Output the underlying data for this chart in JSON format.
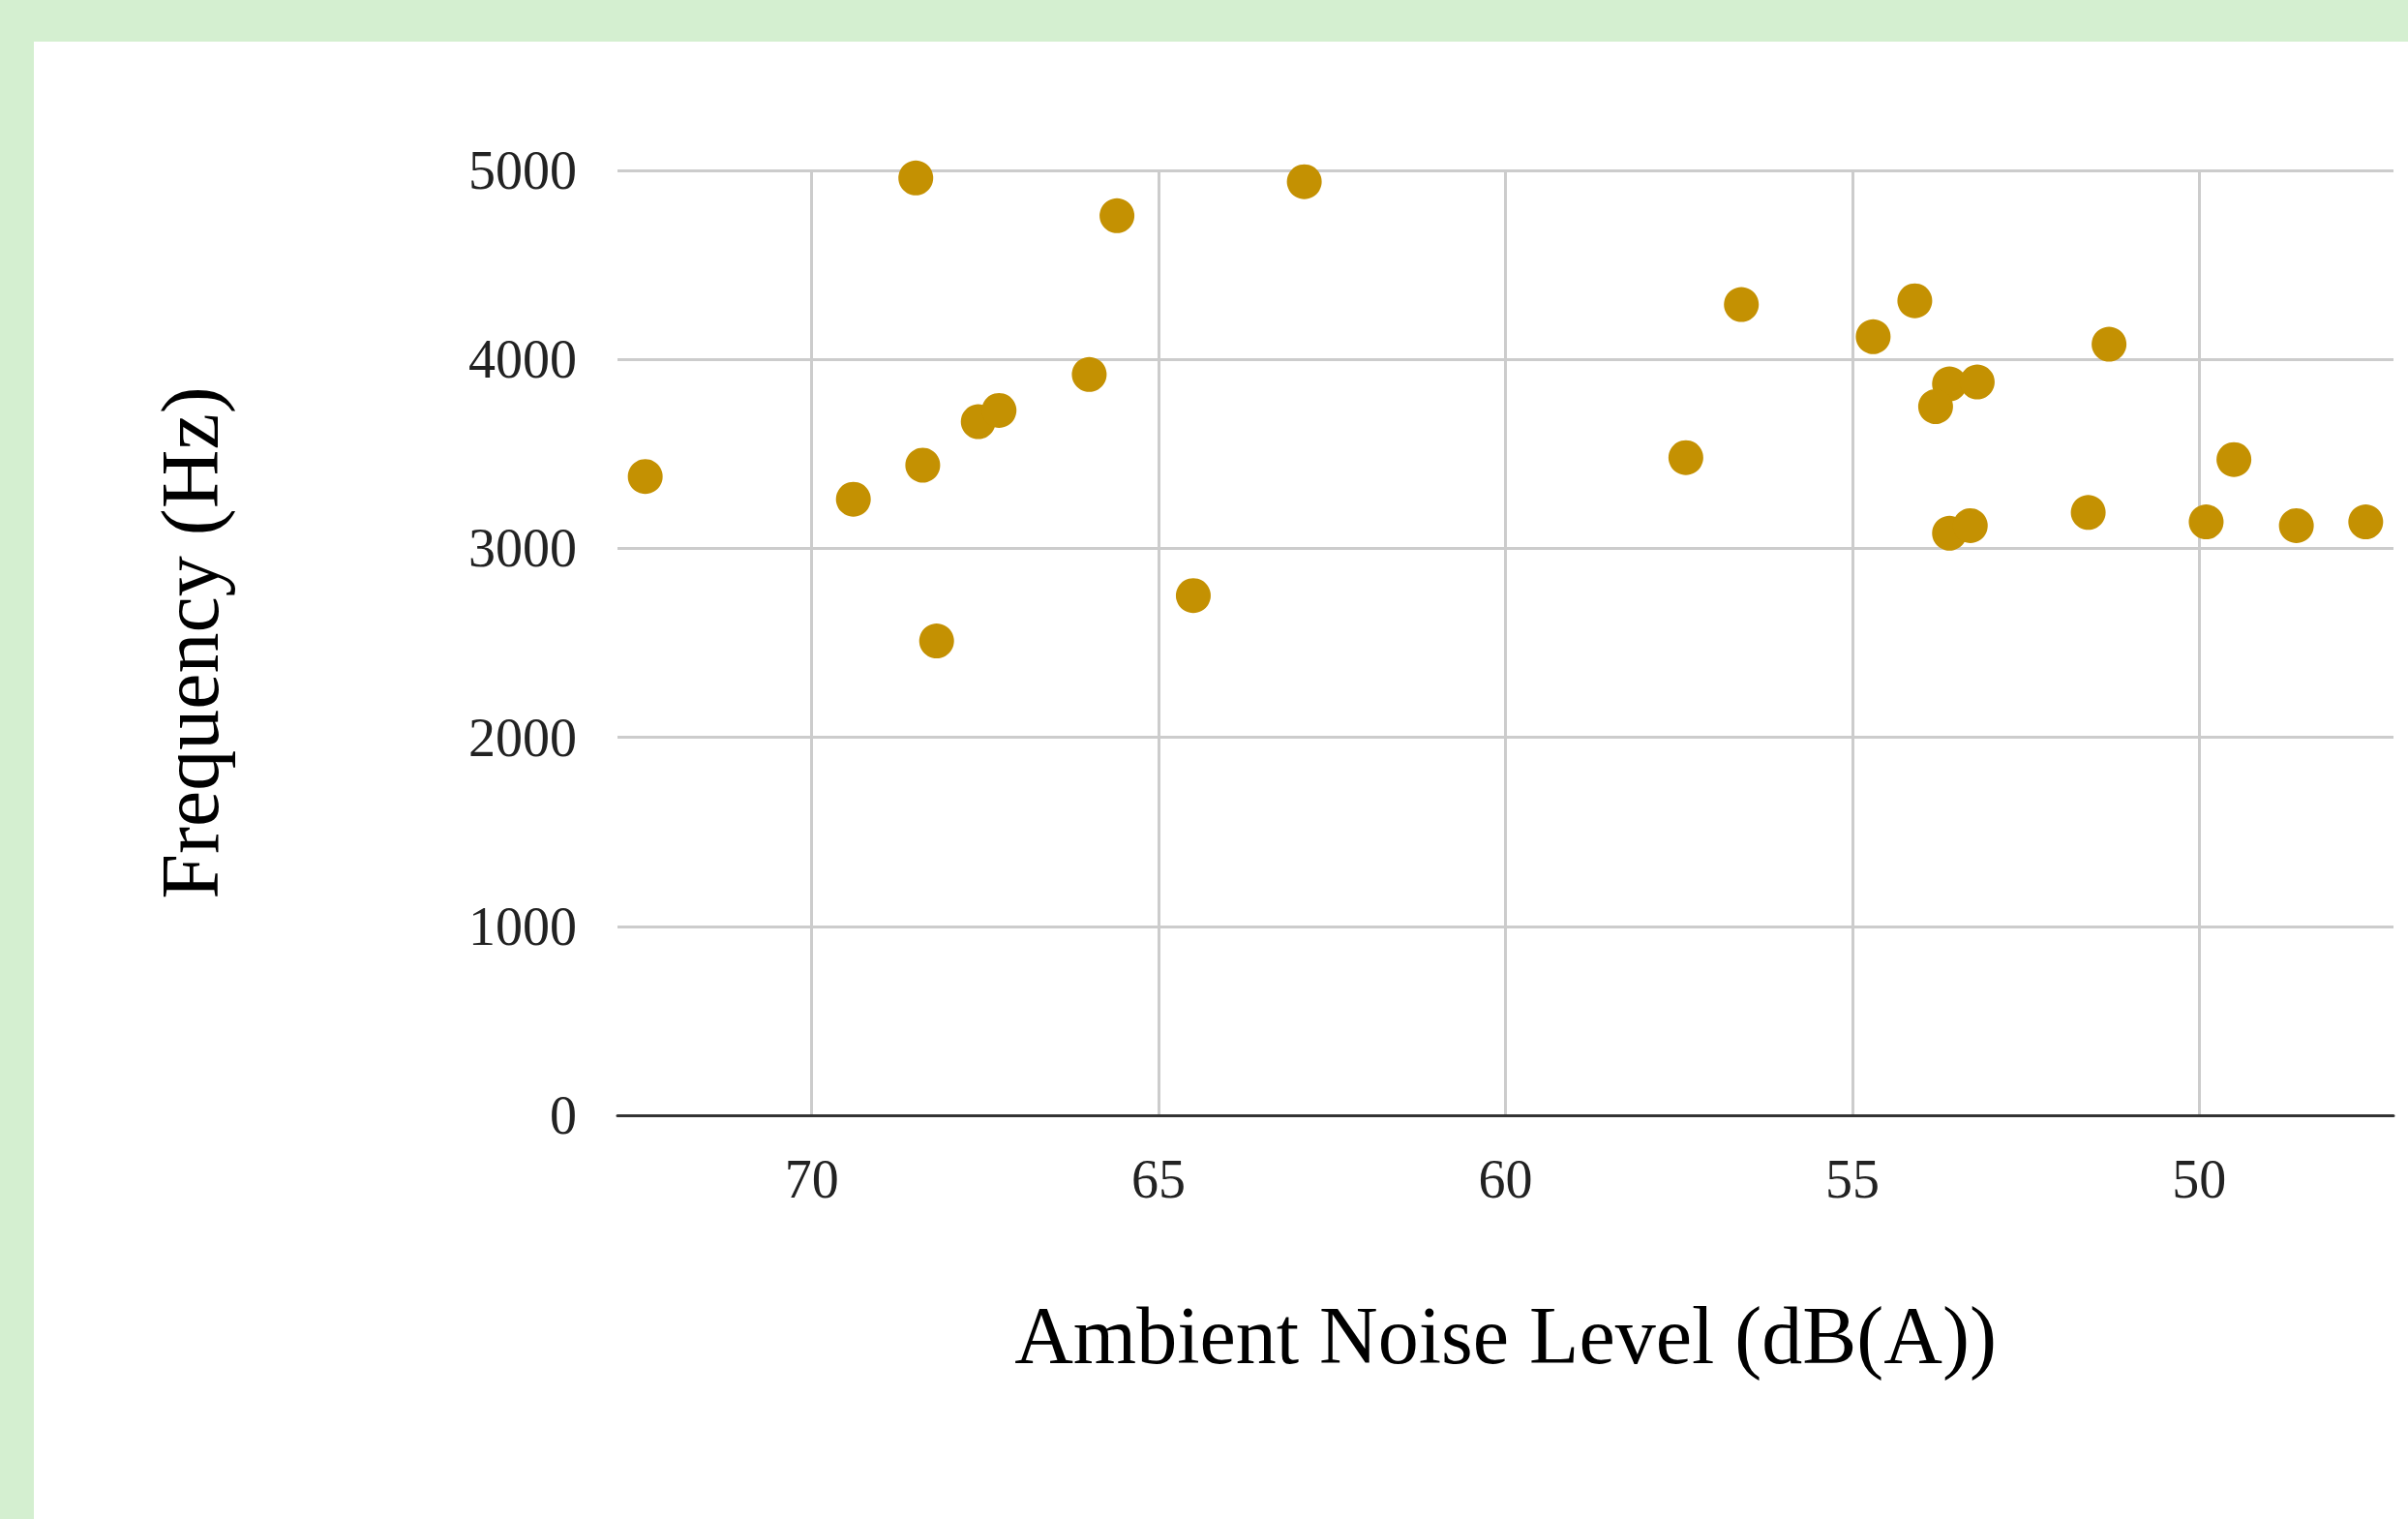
{
  "chart_data": {
    "type": "scatter",
    "xlabel": "Ambient Noise Level (dB(A))",
    "ylabel": "Frequency (Hz)",
    "x": [
      72.4,
      68.5,
      65.6,
      62.9,
      69.4,
      68.4,
      67.6,
      67.3,
      66.0,
      68.2,
      64.5,
      56.6,
      57.4,
      54.7,
      54.1,
      51.3,
      53.6,
      53.2,
      53.8,
      53.6,
      53.3,
      51.6,
      49.5,
      49.9,
      48.6,
      47.6
    ],
    "values": [
      3380,
      4960,
      4760,
      4940,
      3260,
      3440,
      3670,
      3730,
      3920,
      2510,
      2750,
      4290,
      3480,
      4120,
      4310,
      4080,
      3870,
      3880,
      3750,
      3080,
      3120,
      3190,
      3470,
      3140,
      3120,
      3140
    ],
    "color": "#c49102",
    "marker": "circle",
    "xlim": [
      72.8,
      47.2
    ],
    "xticks": [
      70,
      65,
      60,
      55,
      50
    ],
    "ylim": [
      0,
      5000
    ],
    "yticks": [
      0,
      1000,
      2000,
      3000,
      4000,
      5000
    ],
    "grid": true
  }
}
